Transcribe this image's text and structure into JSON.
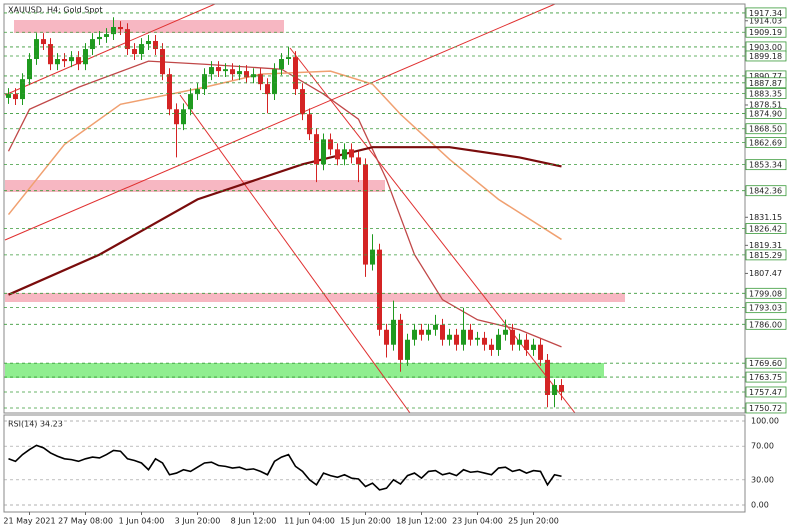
{
  "chart_data": [
    {
      "type": "candlestick",
      "title": "XAUUSD, H4: Gold Spot",
      "up_color": "#1f9a1f",
      "down_color": "#d42424",
      "level_color": "#3a9a3a",
      "categories": [
        null,
        null,
        null,
        "21 May 2021",
        null,
        null,
        null,
        null,
        null,
        null,
        null,
        "27 May 08:00",
        null,
        null,
        null,
        null,
        null,
        null,
        null,
        "1 Jun 04:00",
        null,
        null,
        null,
        null,
        null,
        null,
        null,
        "3 Jun 20:00",
        null,
        null,
        null,
        null,
        null,
        null,
        null,
        "8 Jun 12:00",
        null,
        null,
        null,
        null,
        null,
        null,
        null,
        "11 Jun 04:00",
        null,
        null,
        null,
        null,
        null,
        null,
        null,
        "15 Jun 20:00",
        null,
        null,
        null,
        null,
        null,
        null,
        null,
        "18 Jun 12:00",
        null,
        null,
        null,
        null,
        null,
        null,
        null,
        "23 Jun 04:00",
        null,
        null,
        null,
        null,
        null,
        null,
        null,
        "25 Jun 20:00",
        null,
        null,
        null,
        null
      ],
      "open": [
        1881.5,
        1883.1,
        1881.0,
        1889.4,
        1897.9,
        1906.3,
        1904.2,
        1895.7,
        1897.9,
        1897.0,
        1898.7,
        1895.7,
        1902.1,
        1906.3,
        1907.2,
        1908.4,
        1911.4,
        1910.5,
        1902.1,
        1900.0,
        1904.2,
        1905.5,
        1902.1,
        1891.5,
        1876.7,
        1870.4,
        1876.7,
        1883.1,
        1885.2,
        1891.5,
        1894.5,
        1892.8,
        1893.6,
        1891.5,
        1892.8,
        1890.2,
        1891.5,
        1887.3,
        1883.1,
        1893.6,
        1897.9,
        1898.7,
        1885.2,
        1874.6,
        1866.2,
        1853.5,
        1864.0,
        1859.8,
        1855.6,
        1859.8,
        1856.4,
        1853.5,
        1811.2,
        1817.5,
        1783.7,
        1777.4,
        1787.9,
        1771.0,
        1779.5,
        1783.7,
        1781.6,
        1783.7,
        1785.8,
        1779.5,
        1781.6,
        1777.4,
        1783.7,
        1779.5,
        1780.3,
        1777.4,
        1775.2,
        1781.6,
        1783.7,
        1777.4,
        1779.5,
        1775.2,
        1777.4,
        1771.0,
        1756.2,
        1760.4
      ],
      "high": [
        1885.6,
        1885.6,
        1891.9,
        1900.4,
        1908.8,
        1908.8,
        1906.7,
        1900.4,
        1900.4,
        1901.2,
        1901.2,
        1904.6,
        1908.8,
        1909.7,
        1910.9,
        1915.5,
        1913.9,
        1913.0,
        1904.6,
        1906.7,
        1908.0,
        1908.0,
        1904.6,
        1894.0,
        1879.2,
        1879.2,
        1885.6,
        1887.7,
        1894.0,
        1897.0,
        1897.0,
        1896.1,
        1896.1,
        1895.3,
        1895.3,
        1894.0,
        1894.0,
        1889.8,
        1896.1,
        1900.4,
        1903.0,
        1901.2,
        1887.7,
        1877.1,
        1868.7,
        1866.5,
        1866.5,
        1862.3,
        1862.3,
        1862.3,
        1858.9,
        1856.0,
        1824.0,
        1820.0,
        1786.2,
        1796.0,
        1790.4,
        1782.0,
        1786.2,
        1786.2,
        1786.2,
        1790.0,
        1788.3,
        1784.1,
        1784.1,
        1793.0,
        1786.2,
        1782.8,
        1782.8,
        1779.9,
        1784.1,
        1788.0,
        1786.2,
        1782.0,
        1782.0,
        1779.9,
        1779.9,
        1773.5,
        1762.9,
        1762.9
      ],
      "low": [
        1879.0,
        1878.5,
        1878.5,
        1886.9,
        1895.4,
        1901.7,
        1893.2,
        1893.2,
        1894.5,
        1894.5,
        1893.2,
        1893.2,
        1899.6,
        1903.8,
        1904.7,
        1905.9,
        1908.0,
        1899.6,
        1897.5,
        1897.5,
        1901.7,
        1899.6,
        1889.0,
        1874.2,
        1856.4,
        1867.9,
        1874.2,
        1880.6,
        1882.7,
        1889.0,
        1890.3,
        1890.3,
        1889.0,
        1889.0,
        1887.7,
        1887.7,
        1884.8,
        1875.0,
        1880.6,
        1891.1,
        1895.4,
        1882.7,
        1872.1,
        1863.7,
        1846.0,
        1851.0,
        1857.3,
        1853.1,
        1853.1,
        1853.9,
        1846.0,
        1806.0,
        1808.7,
        1781.2,
        1772.0,
        1774.9,
        1766.0,
        1768.5,
        1777.0,
        1779.1,
        1779.1,
        1781.2,
        1777.0,
        1777.0,
        1774.9,
        1774.9,
        1777.0,
        1777.0,
        1774.9,
        1772.7,
        1772.7,
        1779.1,
        1774.9,
        1774.9,
        1772.7,
        1772.7,
        1768.5,
        1751.0,
        1751.0,
        1754.0
      ],
      "close": [
        1883.1,
        1881.0,
        1889.4,
        1897.9,
        1906.3,
        1904.2,
        1895.7,
        1897.9,
        1897.0,
        1898.7,
        1895.7,
        1902.1,
        1906.3,
        1907.2,
        1908.4,
        1911.4,
        1910.5,
        1902.1,
        1900.0,
        1904.2,
        1905.5,
        1902.1,
        1891.5,
        1876.7,
        1870.4,
        1876.7,
        1883.1,
        1885.2,
        1891.5,
        1894.5,
        1892.8,
        1893.6,
        1891.5,
        1892.8,
        1890.2,
        1891.5,
        1887.3,
        1883.1,
        1893.6,
        1897.9,
        1898.7,
        1885.2,
        1874.6,
        1866.2,
        1853.5,
        1864.0,
        1859.8,
        1855.6,
        1859.8,
        1856.4,
        1853.5,
        1811.2,
        1817.5,
        1783.7,
        1777.4,
        1787.9,
        1771.0,
        1779.5,
        1783.7,
        1781.6,
        1783.7,
        1785.8,
        1779.5,
        1781.6,
        1777.4,
        1783.7,
        1779.5,
        1780.3,
        1777.4,
        1775.2,
        1781.6,
        1783.7,
        1777.4,
        1779.5,
        1775.2,
        1777.4,
        1771.0,
        1756.2,
        1760.4,
        1757.5
      ],
      "series": [
        {
          "color": "#c04848",
          "width": 1.3,
          "x": [
            0,
            3,
            10,
            20,
            28,
            39,
            45,
            50,
            54,
            58,
            62,
            67,
            73,
            79
          ],
          "values": [
            1859.0,
            1876.7,
            1886.0,
            1897.0,
            1895.7,
            1893.6,
            1883.1,
            1872.5,
            1847.1,
            1815.4,
            1796.4,
            1787.9,
            1783.7,
            1776.5
          ]
        },
        {
          "color": "#f0a070",
          "width": 1.5,
          "x": [
            0,
            8,
            16,
            28,
            36,
            46,
            52,
            56,
            63,
            70,
            79
          ],
          "values": [
            1832.3,
            1861.9,
            1878.8,
            1886.0,
            1891.5,
            1892.8,
            1887.3,
            1874.6,
            1855.6,
            1838.7,
            1821.8
          ]
        },
        {
          "color": "#7a0c0c",
          "width": 2.2,
          "x": [
            0,
            13,
            27,
            42,
            52,
            63,
            73,
            79
          ],
          "values": [
            1798.5,
            1815.4,
            1838.7,
            1853.5,
            1860.7,
            1860.7,
            1856.4,
            1852.6
          ]
        }
      ],
      "ylim": [
        1748.6,
        1921.1
      ],
      "yticks": [
        1914.03,
        1878.51,
        1831.15,
        1819.31,
        1807.47
      ],
      "levels": [
        1917.34,
        1909.19,
        {
          "value": 1903,
          "label": "1903.00"
        },
        1899.18,
        1890.77,
        1887.87,
        1883.35,
        {
          "value": 1874.9,
          "label": "1874.90"
        },
        {
          "value": 1868.5,
          "label": "1868.50"
        },
        1862.69,
        1853.34,
        1842.36,
        1826.42,
        1815.29,
        1799.08,
        1793.03,
        {
          "value": 1786,
          "label": "1786.00"
        },
        {
          "value": 1769.6,
          "label": "1769.60"
        },
        1763.75,
        1757.47,
        1750.72
      ]
    },
    {
      "type": "line",
      "title": "RSI(14) 34.23",
      "color": "#000000",
      "values": [
        55,
        52,
        60,
        66,
        71,
        68,
        62,
        58,
        55,
        54,
        52,
        55,
        57,
        56,
        60,
        65,
        64,
        55,
        53,
        50,
        42,
        55,
        50,
        36,
        38,
        42,
        40,
        45,
        50,
        51,
        47,
        46,
        44,
        45,
        42,
        43,
        40,
        36,
        52,
        57,
        60,
        46,
        40,
        30,
        24,
        38,
        35,
        33,
        36,
        32,
        31,
        22,
        26,
        18,
        20,
        30,
        25,
        35,
        38,
        32,
        40,
        41,
        36,
        38,
        35,
        42,
        39,
        40,
        38,
        36,
        44,
        45,
        40,
        42,
        38,
        41,
        40,
        24,
        36,
        34.23
      ],
      "ylim": [
        0,
        100
      ],
      "yticks": [
        {
          "value": 100,
          "label": "100.00"
        },
        {
          "value": 70,
          "label": "70.00"
        },
        {
          "value": 30,
          "label": "30.00"
        },
        {
          "value": 0,
          "label": "0.00"
        }
      ]
    }
  ]
}
